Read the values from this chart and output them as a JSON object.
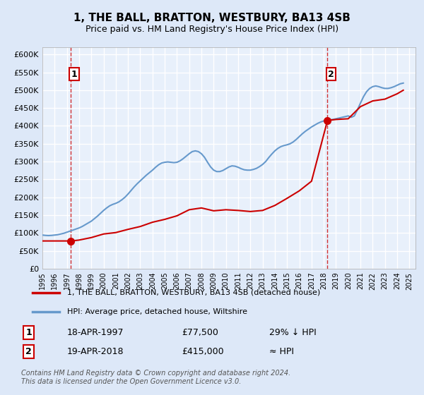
{
  "title": "1, THE BALL, BRATTON, WESTBURY, BA13 4SB",
  "subtitle": "Price paid vs. HM Land Registry's House Price Index (HPI)",
  "bg_color": "#dde8f8",
  "plot_bg_color": "#e8f0fb",
  "grid_color": "#ffffff",
  "ylim": [
    0,
    620000
  ],
  "yticks": [
    0,
    50000,
    100000,
    150000,
    200000,
    250000,
    300000,
    350000,
    400000,
    450000,
    500000,
    550000,
    600000
  ],
  "xlim_start": 1995.0,
  "xlim_end": 2025.5,
  "xticks": [
    1995,
    1996,
    1997,
    1998,
    1999,
    2000,
    2001,
    2002,
    2003,
    2004,
    2005,
    2006,
    2007,
    2008,
    2009,
    2010,
    2011,
    2012,
    2013,
    2014,
    2015,
    2016,
    2017,
    2018,
    2019,
    2020,
    2021,
    2022,
    2023,
    2024,
    2025
  ],
  "hpi_color": "#6699cc",
  "price_color": "#cc0000",
  "marker_color": "#cc0000",
  "sale1_year": 1997.3,
  "sale1_price": 77500,
  "sale2_year": 2018.3,
  "sale2_price": 415000,
  "legend_label1": "1, THE BALL, BRATTON, WESTBURY, BA13 4SB (detached house)",
  "legend_label2": "HPI: Average price, detached house, Wiltshire",
  "note1_label": "1",
  "note1_date": "18-APR-1997",
  "note1_price": "£77,500",
  "note1_hpi": "29% ↓ HPI",
  "note2_label": "2",
  "note2_date": "19-APR-2018",
  "note2_price": "£415,000",
  "note2_hpi": "≈ HPI",
  "footer": "Contains HM Land Registry data © Crown copyright and database right 2024.\nThis data is licensed under the Open Government Licence v3.0.",
  "hpi_data_x": [
    1995,
    1995.25,
    1995.5,
    1995.75,
    1996,
    1996.25,
    1996.5,
    1996.75,
    1997,
    1997.25,
    1997.5,
    1997.75,
    1998,
    1998.25,
    1998.5,
    1998.75,
    1999,
    1999.25,
    1999.5,
    1999.75,
    2000,
    2000.25,
    2000.5,
    2000.75,
    2001,
    2001.25,
    2001.5,
    2001.75,
    2002,
    2002.25,
    2002.5,
    2002.75,
    2003,
    2003.25,
    2003.5,
    2003.75,
    2004,
    2004.25,
    2004.5,
    2004.75,
    2005,
    2005.25,
    2005.5,
    2005.75,
    2006,
    2006.25,
    2006.5,
    2006.75,
    2007,
    2007.25,
    2007.5,
    2007.75,
    2008,
    2008.25,
    2008.5,
    2008.75,
    2009,
    2009.25,
    2009.5,
    2009.75,
    2010,
    2010.25,
    2010.5,
    2010.75,
    2011,
    2011.25,
    2011.5,
    2011.75,
    2012,
    2012.25,
    2012.5,
    2012.75,
    2013,
    2013.25,
    2013.5,
    2013.75,
    2014,
    2014.25,
    2014.5,
    2014.75,
    2015,
    2015.25,
    2015.5,
    2015.75,
    2016,
    2016.25,
    2016.5,
    2016.75,
    2017,
    2017.25,
    2017.5,
    2017.75,
    2018,
    2018.25,
    2018.5,
    2018.75,
    2019,
    2019.25,
    2019.5,
    2019.75,
    2020,
    2020.25,
    2020.5,
    2020.75,
    2021,
    2021.25,
    2021.5,
    2021.75,
    2022,
    2022.25,
    2022.5,
    2022.75,
    2023,
    2023.25,
    2023.5,
    2023.75,
    2024,
    2024.25,
    2024.5
  ],
  "hpi_data_y": [
    94000,
    93000,
    92500,
    93000,
    94000,
    95000,
    97000,
    99000,
    102000,
    105000,
    108000,
    111000,
    114000,
    118000,
    123000,
    128000,
    133000,
    140000,
    147000,
    155000,
    163000,
    170000,
    176000,
    180000,
    183000,
    187000,
    193000,
    200000,
    209000,
    219000,
    229000,
    238000,
    246000,
    254000,
    262000,
    269000,
    276000,
    284000,
    291000,
    296000,
    298000,
    299000,
    298000,
    297000,
    298000,
    302000,
    308000,
    315000,
    322000,
    328000,
    330000,
    328000,
    322000,
    312000,
    298000,
    285000,
    276000,
    272000,
    272000,
    275000,
    280000,
    285000,
    288000,
    287000,
    284000,
    280000,
    277000,
    276000,
    276000,
    278000,
    281000,
    286000,
    292000,
    300000,
    311000,
    321000,
    330000,
    337000,
    342000,
    345000,
    347000,
    350000,
    355000,
    362000,
    370000,
    378000,
    385000,
    391000,
    397000,
    402000,
    407000,
    411000,
    414000,
    416000,
    417000,
    418000,
    420000,
    422000,
    424000,
    426000,
    428000,
    424000,
    428000,
    445000,
    464000,
    482000,
    496000,
    505000,
    510000,
    512000,
    510000,
    507000,
    505000,
    505000,
    507000,
    510000,
    514000,
    518000,
    520000
  ],
  "price_line_x": [
    1995,
    1997.3,
    1997.5,
    1998,
    1999,
    2000,
    2001,
    2002,
    2003,
    2004,
    2005,
    2006,
    2007,
    2008,
    2009,
    2010,
    2011,
    2012,
    2013,
    2014,
    2015,
    2016,
    2017,
    2018.3,
    2018.5,
    2019,
    2020,
    2021,
    2022,
    2023,
    2024,
    2024.5
  ],
  "price_line_y": [
    77500,
    77500,
    78000,
    80000,
    87000,
    97000,
    101000,
    110000,
    118000,
    130000,
    138000,
    148000,
    165000,
    170000,
    162000,
    165000,
    163000,
    160000,
    163000,
    177000,
    197000,
    218000,
    245000,
    415000,
    416000,
    418000,
    420000,
    454000,
    470000,
    475000,
    490000,
    500000
  ]
}
